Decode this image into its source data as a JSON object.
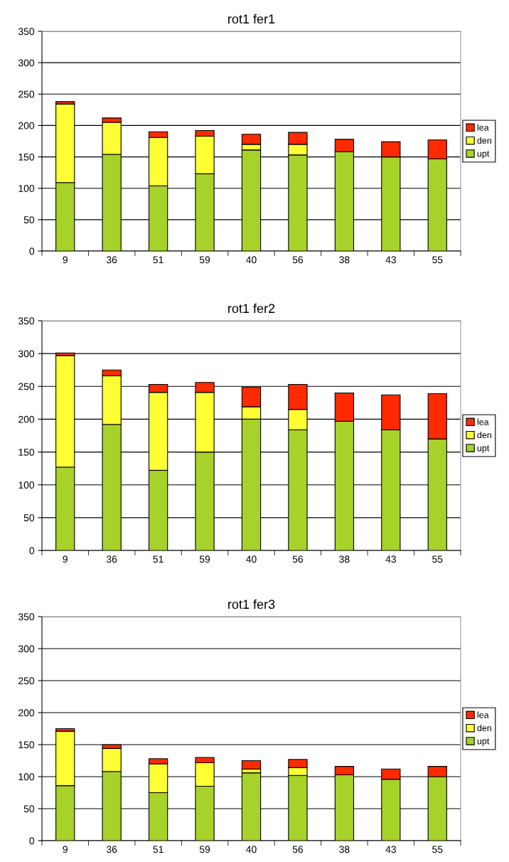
{
  "chart_data": [
    {
      "type": "bar",
      "title": "rot1 fer1",
      "stacked": true,
      "categories": [
        "9",
        "36",
        "51",
        "59",
        "40",
        "56",
        "38",
        "43",
        "55"
      ],
      "ylim": [
        0,
        350
      ],
      "yticks": [
        0,
        50,
        100,
        150,
        200,
        250,
        300,
        350
      ],
      "grid": "y",
      "legend": "right",
      "series": [
        {
          "name": "upt",
          "color": "#a6d22a",
          "values": [
            109,
            154,
            104,
            123,
            161,
            153,
            158,
            150,
            147
          ]
        },
        {
          "name": "den",
          "color": "#ffff33",
          "values": [
            125,
            51,
            77,
            60,
            9,
            17,
            0,
            0,
            0
          ]
        },
        {
          "name": "lea",
          "color": "#ff2a00",
          "values": [
            4,
            7,
            9,
            9,
            16,
            19,
            20,
            24,
            30
          ]
        }
      ]
    },
    {
      "type": "bar",
      "title": "rot1 fer2",
      "stacked": true,
      "categories": [
        "9",
        "36",
        "51",
        "59",
        "40",
        "56",
        "38",
        "43",
        "55"
      ],
      "ylim": [
        0,
        350
      ],
      "yticks": [
        0,
        50,
        100,
        150,
        200,
        250,
        300,
        350
      ],
      "grid": "y",
      "legend": "right",
      "series": [
        {
          "name": "upt",
          "color": "#a6d22a",
          "values": [
            127,
            192,
            122,
            150,
            200,
            184,
            197,
            184,
            170
          ]
        },
        {
          "name": "den",
          "color": "#ffff33",
          "values": [
            170,
            74,
            119,
            91,
            19,
            31,
            0,
            0,
            0
          ]
        },
        {
          "name": "lea",
          "color": "#ff2a00",
          "values": [
            4,
            9,
            12,
            15,
            30,
            38,
            43,
            53,
            69
          ]
        }
      ]
    },
    {
      "type": "bar",
      "title": "rot1 fer3",
      "stacked": true,
      "categories": [
        "9",
        "36",
        "51",
        "59",
        "40",
        "56",
        "38",
        "43",
        "55"
      ],
      "ylim": [
        0,
        350
      ],
      "yticks": [
        0,
        50,
        100,
        150,
        200,
        250,
        300,
        350
      ],
      "grid": "y",
      "legend": "right",
      "series": [
        {
          "name": "upt",
          "color": "#a6d22a",
          "values": [
            86,
            108,
            75,
            85,
            106,
            102,
            103,
            96,
            100
          ]
        },
        {
          "name": "den",
          "color": "#ffff33",
          "values": [
            85,
            36,
            45,
            37,
            6,
            12,
            0,
            0,
            0
          ]
        },
        {
          "name": "lea",
          "color": "#ff2a00",
          "values": [
            4,
            6,
            8,
            8,
            13,
            13,
            13,
            16,
            16
          ]
        }
      ]
    }
  ]
}
